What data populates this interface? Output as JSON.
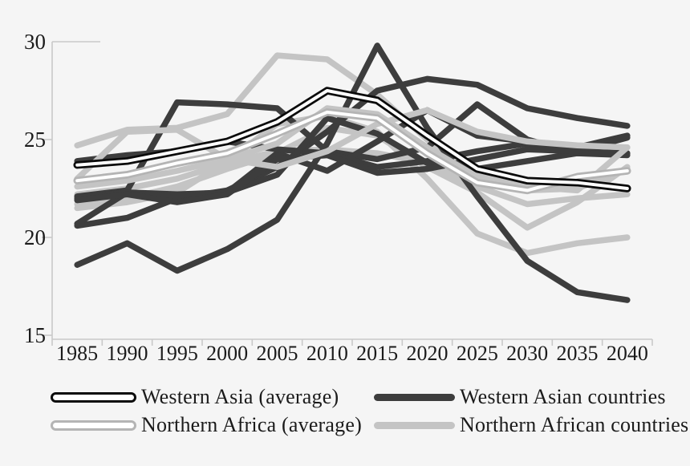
{
  "colors": {
    "background": "#f5f5f5",
    "axis": "#c9c9c9",
    "text": "#1b1b1b",
    "western_asia_average_outline": "#0b0b0b",
    "northern_africa_average_outline": "#b4b4b4",
    "average_core": "#ffffff",
    "western_asian_countries": "#3d3d3d",
    "northern_african_countries": "#c4c4c4"
  },
  "chart_data": {
    "type": "line",
    "title": "",
    "xlabel": "",
    "ylabel": "",
    "grid": false,
    "ylim": [
      15,
      30
    ],
    "y_ticks": [
      30,
      25,
      20,
      15
    ],
    "x_categories": [
      "1985",
      "1990",
      "1995",
      "2000",
      "2005",
      "2010",
      "2015",
      "2020",
      "2025",
      "2030",
      "2035",
      "2040"
    ],
    "series": [
      {
        "name": "Western Asia (average)",
        "type": "average",
        "outline_color": "#0b0b0b",
        "core_color": "#ffffff",
        "values": [
          23.7,
          23.9,
          24.4,
          24.9,
          25.9,
          27.5,
          27.0,
          25.2,
          23.5,
          22.9,
          22.8,
          22.5
        ]
      },
      {
        "name": "Northern Africa (average)",
        "type": "average",
        "outline_color": "#b4b4b4",
        "core_color": "#ffffff",
        "values": [
          22.9,
          23.2,
          23.8,
          24.3,
          25.3,
          26.4,
          26.1,
          24.3,
          22.8,
          22.4,
          23.1,
          23.4
        ]
      },
      {
        "name": "Western Asian countries",
        "type": "country-group",
        "color": "#3d3d3d",
        "members": [
          [
            18.6,
            19.7,
            18.3,
            19.4,
            20.9,
            24.8,
            29.8,
            25.6,
            22.1,
            18.8,
            17.2,
            16.8
          ],
          [
            20.6,
            21.0,
            22.0,
            22.4,
            23.6,
            25.4,
            27.5,
            28.1,
            27.8,
            26.6,
            26.1,
            25.7
          ],
          [
            22.1,
            22.4,
            26.9,
            26.8,
            26.6,
            24.4,
            24.0,
            24.6,
            26.8,
            25.0,
            24.3,
            24.2
          ],
          [
            20.7,
            22.3,
            22.2,
            22.3,
            24.3,
            23.4,
            24.9,
            26.5,
            25.2,
            24.9,
            24.6,
            25.2
          ],
          [
            23.9,
            24.2,
            24.4,
            24.9,
            24.5,
            24.3,
            23.6,
            23.9,
            24.4,
            24.8,
            24.4,
            24.3
          ],
          [
            22.0,
            22.3,
            22.1,
            22.3,
            23.2,
            26.1,
            25.3,
            23.8,
            23.5,
            23.9,
            24.3,
            24.3
          ],
          [
            21.9,
            22.2,
            21.8,
            22.2,
            24.0,
            24.2,
            23.3,
            23.5,
            24.0,
            24.5,
            24.4,
            25.1
          ]
        ]
      },
      {
        "name": "Northern African countries",
        "type": "country-group",
        "color": "#c4c4c4",
        "members": [
          [
            24.7,
            25.5,
            25.6,
            26.3,
            29.3,
            29.1,
            27.3,
            25.0,
            23.2,
            22.4,
            22.5,
            23.5
          ],
          [
            22.6,
            22.9,
            23.4,
            24.0,
            24.8,
            26.6,
            26.3,
            24.6,
            23.1,
            22.6,
            22.4,
            24.6
          ],
          [
            22.2,
            22.5,
            23.0,
            23.8,
            24.4,
            24.5,
            24.3,
            23.8,
            22.6,
            21.7,
            22.0,
            22.2
          ],
          [
            21.7,
            22.0,
            22.6,
            23.5,
            24.3,
            25.6,
            25.2,
            23.6,
            22.3,
            20.5,
            21.8,
            23.6
          ],
          [
            21.5,
            21.8,
            22.3,
            23.9,
            25.8,
            26.2,
            25.4,
            23.0,
            20.2,
            19.2,
            19.7,
            20.0
          ],
          [
            23.0,
            25.4,
            25.5,
            24.0,
            23.6,
            24.4,
            25.8,
            26.5,
            25.4,
            24.9,
            24.7,
            24.6
          ]
        ]
      }
    ],
    "legend": {
      "position": "bottom",
      "entries": [
        {
          "label": "Western Asia (average)",
          "swatch": "black-outlined-capsule"
        },
        {
          "label": "Northern Africa (average)",
          "swatch": "silver-outlined-capsule"
        },
        {
          "label": "Western Asian countries",
          "swatch": "dark-gray-bar"
        },
        {
          "label": "Northern African countries",
          "swatch": "light-gray-bar"
        }
      ]
    }
  }
}
